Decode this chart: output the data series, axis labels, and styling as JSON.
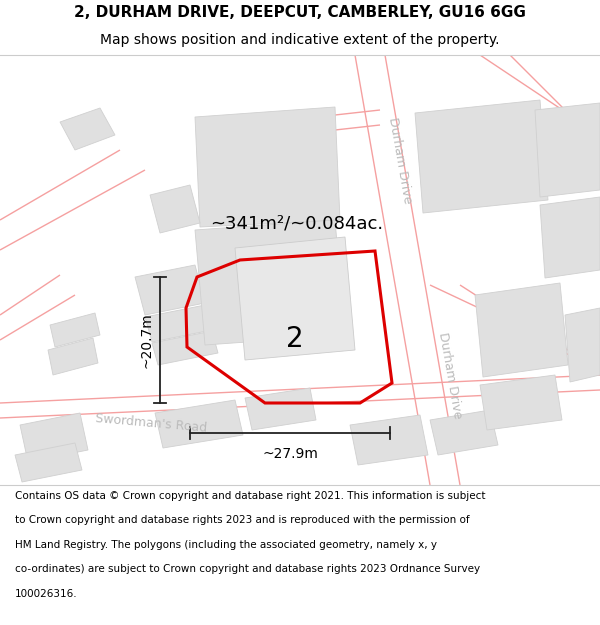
{
  "title_line1": "2, DURHAM DRIVE, DEEPCUT, CAMBERLEY, GU16 6GG",
  "title_line2": "Map shows position and indicative extent of the property.",
  "footer_lines": [
    "Contains OS data © Crown copyright and database right 2021. This information is subject",
    "to Crown copyright and database rights 2023 and is reproduced with the permission of",
    "HM Land Registry. The polygons (including the associated geometry, namely x, y",
    "co-ordinates) are subject to Crown copyright and database rights 2023 Ordnance Survey",
    "100026316."
  ],
  "area_label": "~341m²/~0.084ac.",
  "property_number": "2",
  "dim_width": "~27.9m",
  "dim_height": "~20.7m",
  "road_label_sw": "Swordman's Road",
  "road_label_durham1": "Durham Drive",
  "road_label_durham2": "Durham Drive",
  "bg_color": "#ffffff",
  "map_bg": "#ffffff",
  "building_fill": "#e0e0e0",
  "building_edge": "#d0d0d0",
  "road_line_color": "#f5a0a0",
  "property_outline_color": "#dd0000",
  "dim_line_color": "#222222",
  "road_label_color": "#bbbbbb",
  "title_color": "#000000",
  "footer_color": "#000000",
  "area_label_color": "#000000",
  "title_fontsize": 11,
  "subtitle_fontsize": 10,
  "area_fontsize": 13,
  "dim_fontsize": 10,
  "road_label_fontsize": 9,
  "number_fontsize": 20,
  "footer_fontsize": 7.5
}
